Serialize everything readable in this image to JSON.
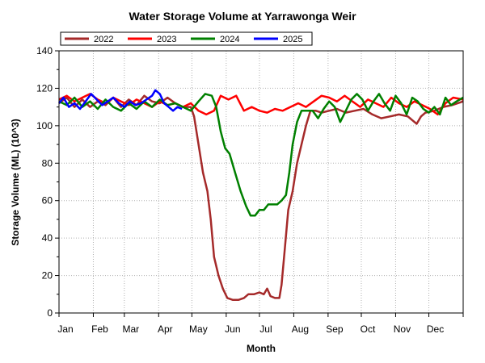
{
  "chart_data": {
    "type": "line",
    "title": "Water Storage Volume at Yarrawonga Weir",
    "xlabel": "Month",
    "ylabel": "Storage Volume (ML) (10^3)",
    "x_categories": [
      "Jan",
      "Feb",
      "Mar",
      "Apr",
      "May",
      "Jun",
      "Jul",
      "Aug",
      "Sep",
      "Oct",
      "Nov",
      "Dec"
    ],
    "x_unit": "day of year",
    "xlim": [
      1,
      366
    ],
    "ylim": [
      0,
      140
    ],
    "yticks": [
      0,
      20,
      40,
      60,
      80,
      100,
      120,
      140
    ],
    "grid": true,
    "legend_position": "top-left",
    "series": [
      {
        "name": "2022",
        "color": "#a52a2a",
        "points": [
          [
            1,
            112
          ],
          [
            8,
            115
          ],
          [
            15,
            110
          ],
          [
            22,
            114
          ],
          [
            29,
            110
          ],
          [
            36,
            113
          ],
          [
            43,
            111
          ],
          [
            50,
            115
          ],
          [
            57,
            110
          ],
          [
            64,
            114
          ],
          [
            71,
            111
          ],
          [
            78,
            116
          ],
          [
            85,
            113
          ],
          [
            92,
            112
          ],
          [
            99,
            115
          ],
          [
            106,
            112
          ],
          [
            113,
            110
          ],
          [
            120,
            110
          ],
          [
            123,
            105
          ],
          [
            127,
            90
          ],
          [
            131,
            75
          ],
          [
            135,
            65
          ],
          [
            138,
            50
          ],
          [
            141,
            30
          ],
          [
            145,
            20
          ],
          [
            149,
            13
          ],
          [
            153,
            8
          ],
          [
            158,
            7
          ],
          [
            163,
            7
          ],
          [
            168,
            8
          ],
          [
            172,
            10
          ],
          [
            177,
            10
          ],
          [
            182,
            11
          ],
          [
            186,
            10
          ],
          [
            189,
            13
          ],
          [
            192,
            9
          ],
          [
            196,
            8
          ],
          [
            200,
            8
          ],
          [
            202,
            15
          ],
          [
            205,
            35
          ],
          [
            208,
            55
          ],
          [
            212,
            65
          ],
          [
            216,
            80
          ],
          [
            220,
            90
          ],
          [
            224,
            100
          ],
          [
            228,
            108
          ],
          [
            233,
            108
          ],
          [
            238,
            107
          ],
          [
            245,
            108
          ],
          [
            252,
            109
          ],
          [
            260,
            107
          ],
          [
            268,
            108
          ],
          [
            276,
            109
          ],
          [
            284,
            106
          ],
          [
            292,
            104
          ],
          [
            300,
            105
          ],
          [
            308,
            106
          ],
          [
            316,
            105
          ],
          [
            320,
            103
          ],
          [
            324,
            101
          ],
          [
            328,
            105
          ],
          [
            332,
            107
          ],
          [
            340,
            108
          ],
          [
            348,
            110
          ],
          [
            356,
            111
          ],
          [
            366,
            113
          ]
        ]
      },
      {
        "name": "2023",
        "color": "#ff0000",
        "points": [
          [
            1,
            114
          ],
          [
            8,
            116
          ],
          [
            15,
            113
          ],
          [
            22,
            115
          ],
          [
            29,
            117
          ],
          [
            36,
            114
          ],
          [
            43,
            112
          ],
          [
            50,
            115
          ],
          [
            57,
            113
          ],
          [
            64,
            111
          ],
          [
            71,
            114
          ],
          [
            78,
            112
          ],
          [
            85,
            110
          ],
          [
            92,
            113
          ],
          [
            99,
            111
          ],
          [
            106,
            112
          ],
          [
            113,
            110
          ],
          [
            120,
            112
          ],
          [
            127,
            108
          ],
          [
            134,
            106
          ],
          [
            141,
            108
          ],
          [
            147,
            116
          ],
          [
            154,
            114
          ],
          [
            161,
            116
          ],
          [
            168,
            108
          ],
          [
            175,
            110
          ],
          [
            182,
            108
          ],
          [
            189,
            107
          ],
          [
            196,
            109
          ],
          [
            203,
            108
          ],
          [
            210,
            110
          ],
          [
            217,
            112
          ],
          [
            224,
            110
          ],
          [
            231,
            113
          ],
          [
            238,
            116
          ],
          [
            245,
            115
          ],
          [
            252,
            113
          ],
          [
            259,
            116
          ],
          [
            266,
            113
          ],
          [
            273,
            110
          ],
          [
            280,
            114
          ],
          [
            287,
            112
          ],
          [
            294,
            110
          ],
          [
            301,
            115
          ],
          [
            308,
            112
          ],
          [
            315,
            110
          ],
          [
            322,
            113
          ],
          [
            329,
            111
          ],
          [
            336,
            109
          ],
          [
            343,
            106
          ],
          [
            350,
            112
          ],
          [
            357,
            115
          ],
          [
            366,
            114
          ]
        ]
      },
      {
        "name": "2024",
        "color": "#008000",
        "points": [
          [
            1,
            113
          ],
          [
            8,
            111
          ],
          [
            15,
            115
          ],
          [
            22,
            110
          ],
          [
            29,
            113
          ],
          [
            36,
            109
          ],
          [
            43,
            114
          ],
          [
            50,
            110
          ],
          [
            57,
            108
          ],
          [
            64,
            112
          ],
          [
            71,
            109
          ],
          [
            78,
            113
          ],
          [
            85,
            110
          ],
          [
            92,
            114
          ],
          [
            99,
            111
          ],
          [
            106,
            112
          ],
          [
            113,
            110
          ],
          [
            120,
            108
          ],
          [
            127,
            113
          ],
          [
            133,
            117
          ],
          [
            139,
            116
          ],
          [
            143,
            110
          ],
          [
            147,
            97
          ],
          [
            151,
            88
          ],
          [
            155,
            85
          ],
          [
            160,
            75
          ],
          [
            165,
            65
          ],
          [
            170,
            57
          ],
          [
            174,
            52
          ],
          [
            178,
            52
          ],
          [
            182,
            55
          ],
          [
            186,
            55
          ],
          [
            190,
            58
          ],
          [
            194,
            58
          ],
          [
            198,
            58
          ],
          [
            202,
            60
          ],
          [
            206,
            63
          ],
          [
            209,
            75
          ],
          [
            212,
            90
          ],
          [
            216,
            102
          ],
          [
            220,
            108
          ],
          [
            225,
            108
          ],
          [
            230,
            108
          ],
          [
            235,
            104
          ],
          [
            240,
            109
          ],
          [
            245,
            113
          ],
          [
            250,
            110
          ],
          [
            255,
            102
          ],
          [
            260,
            108
          ],
          [
            265,
            114
          ],
          [
            270,
            117
          ],
          [
            275,
            114
          ],
          [
            280,
            108
          ],
          [
            285,
            113
          ],
          [
            290,
            117
          ],
          [
            295,
            112
          ],
          [
            300,
            108
          ],
          [
            305,
            116
          ],
          [
            310,
            112
          ],
          [
            315,
            106
          ],
          [
            320,
            115
          ],
          [
            325,
            113
          ],
          [
            330,
            109
          ],
          [
            335,
            107
          ],
          [
            340,
            110
          ],
          [
            345,
            106
          ],
          [
            350,
            115
          ],
          [
            355,
            111
          ],
          [
            360,
            113
          ],
          [
            366,
            115
          ]
        ]
      },
      {
        "name": "2025",
        "color": "#0000ff",
        "points": [
          [
            1,
            112
          ],
          [
            5,
            115
          ],
          [
            10,
            110
          ],
          [
            15,
            112
          ],
          [
            20,
            109
          ],
          [
            25,
            113
          ],
          [
            30,
            117
          ],
          [
            35,
            114
          ],
          [
            40,
            111
          ],
          [
            45,
            113
          ],
          [
            50,
            115
          ],
          [
            55,
            112
          ],
          [
            60,
            110
          ],
          [
            65,
            113
          ],
          [
            70,
            111
          ],
          [
            75,
            112
          ],
          [
            80,
            114
          ],
          [
            85,
            116
          ],
          [
            88,
            119
          ],
          [
            92,
            117
          ],
          [
            96,
            112
          ],
          [
            100,
            110
          ],
          [
            104,
            108
          ],
          [
            108,
            110
          ],
          [
            112,
            109
          ]
        ]
      }
    ]
  }
}
